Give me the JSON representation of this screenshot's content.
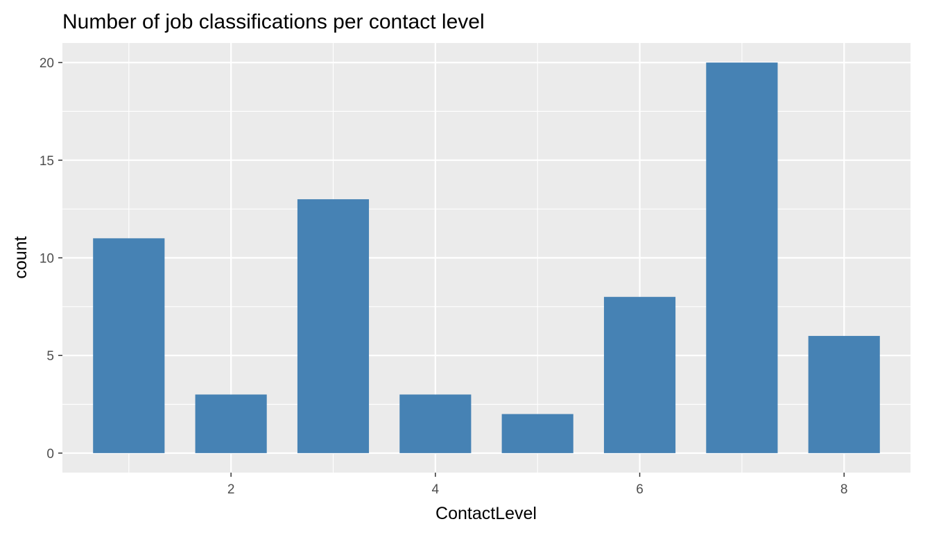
{
  "chart_data": {
    "type": "bar",
    "title": "Number of job classifications per contact level",
    "xlabel": "ContactLevel",
    "ylabel": "count",
    "categories": [
      1,
      2,
      3,
      4,
      5,
      6,
      7,
      8
    ],
    "values": [
      11,
      3,
      13,
      3,
      2,
      8,
      20,
      6
    ],
    "xlim": [
      0.35,
      8.65
    ],
    "ylim": [
      -1,
      21
    ],
    "x_ticks": [
      2,
      4,
      6,
      8
    ],
    "y_ticks": [
      0,
      5,
      10,
      15,
      20
    ],
    "bar_color": "#4682b4",
    "panel_color": "#ebebeb",
    "grid": true,
    "legend": "none"
  }
}
